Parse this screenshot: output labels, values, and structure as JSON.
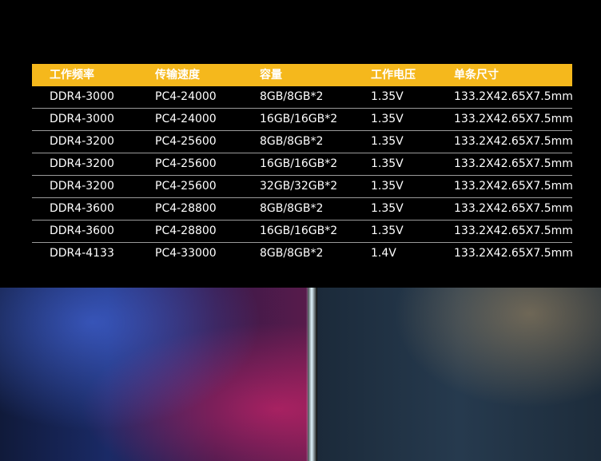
{
  "table": {
    "headers": [
      "工作频率",
      "传输速度",
      "容量",
      "工作电压",
      "单条尺寸"
    ],
    "rows": [
      [
        "DDR4-3000",
        "PC4-24000",
        "8GB/8GB*2",
        "1.35V",
        "133.2X42.65X7.5mm"
      ],
      [
        "DDR4-3000",
        "PC4-24000",
        "16GB/16GB*2",
        "1.35V",
        "133.2X42.65X7.5mm"
      ],
      [
        "DDR4-3200",
        "PC4-25600",
        "8GB/8GB*2",
        "1.35V",
        "133.2X42.65X7.5mm"
      ],
      [
        "DDR4-3200",
        "PC4-25600",
        "16GB/16GB*2",
        "1.35V",
        "133.2X42.65X7.5mm"
      ],
      [
        "DDR4-3200",
        "PC4-25600",
        "32GB/32GB*2",
        "1.35V",
        "133.2X42.65X7.5mm"
      ],
      [
        "DDR4-3600",
        "PC4-28800",
        "8GB/8GB*2",
        "1.35V",
        "133.2X42.65X7.5mm"
      ],
      [
        "DDR4-3600",
        "PC4-28800",
        "16GB/16GB*2",
        "1.35V",
        "133.2X42.65X7.5mm"
      ],
      [
        "DDR4-4133",
        "PC4-33000",
        "8GB/8GB*2",
        "1.4V",
        "133.2X42.65X7.5mm"
      ]
    ]
  },
  "colors": {
    "header_bg": "#f5b81c",
    "page_bg": "#000000",
    "text": "#ffffff"
  }
}
